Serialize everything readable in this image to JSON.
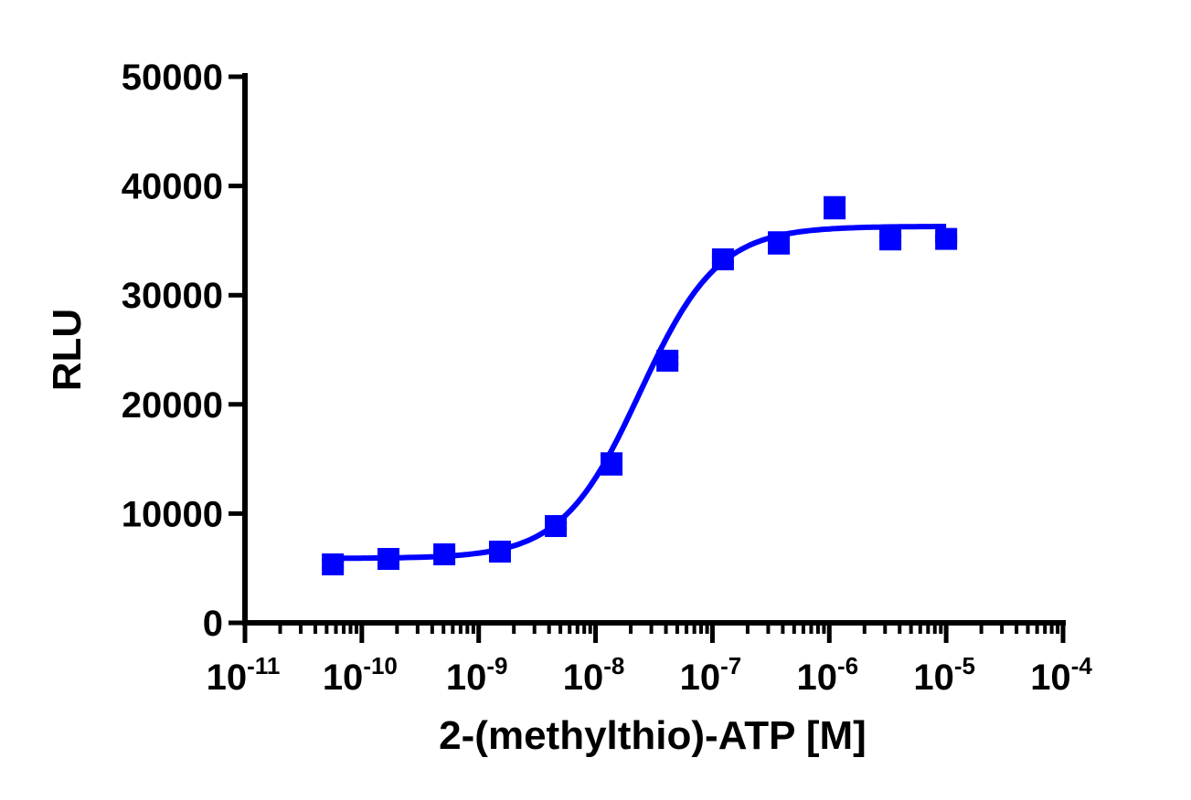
{
  "chart_data": {
    "type": "scatter",
    "title": "",
    "xlabel": "2-(methylthio)-ATP [M]",
    "ylabel": "RLU",
    "xscale": "log",
    "xlim": [
      1e-11,
      0.0001
    ],
    "ylim": [
      0,
      50000
    ],
    "x_tick_labels": [
      {
        "base": "10",
        "exp": "-11"
      },
      {
        "base": "10",
        "exp": "-10"
      },
      {
        "base": "10",
        "exp": "-9"
      },
      {
        "base": "10",
        "exp": "-8"
      },
      {
        "base": "10",
        "exp": "-7"
      },
      {
        "base": "10",
        "exp": "-6"
      },
      {
        "base": "10",
        "exp": "-5"
      },
      {
        "base": "10",
        "exp": "-4"
      }
    ],
    "y_tick_labels": [
      "0",
      "10000",
      "20000",
      "30000",
      "40000",
      "50000"
    ],
    "grid": false,
    "color": "#0000ff",
    "marker": "square",
    "series": [
      {
        "x": [
          5.65e-11,
          1.69e-10,
          5.08e-10,
          1.52e-09,
          4.57e-09,
          1.37e-08,
          4.12e-08,
          1.23e-07,
          3.7e-07,
          1.11e-06,
          3.33e-06,
          1e-05
        ],
        "y": [
          5350,
          5850,
          6270,
          6520,
          8860,
          14550,
          24000,
          33280,
          34780,
          38000,
          35100,
          35150
        ],
        "error": [
          300,
          200,
          200,
          200,
          250,
          900,
          300,
          300,
          900,
          900,
          300,
          200
        ]
      }
    ],
    "fit": {
      "type": "sigmoidal dose-response",
      "bottom": 5900,
      "top": 36300,
      "ec50": 2.4e-08,
      "hill": 1.3
    }
  }
}
